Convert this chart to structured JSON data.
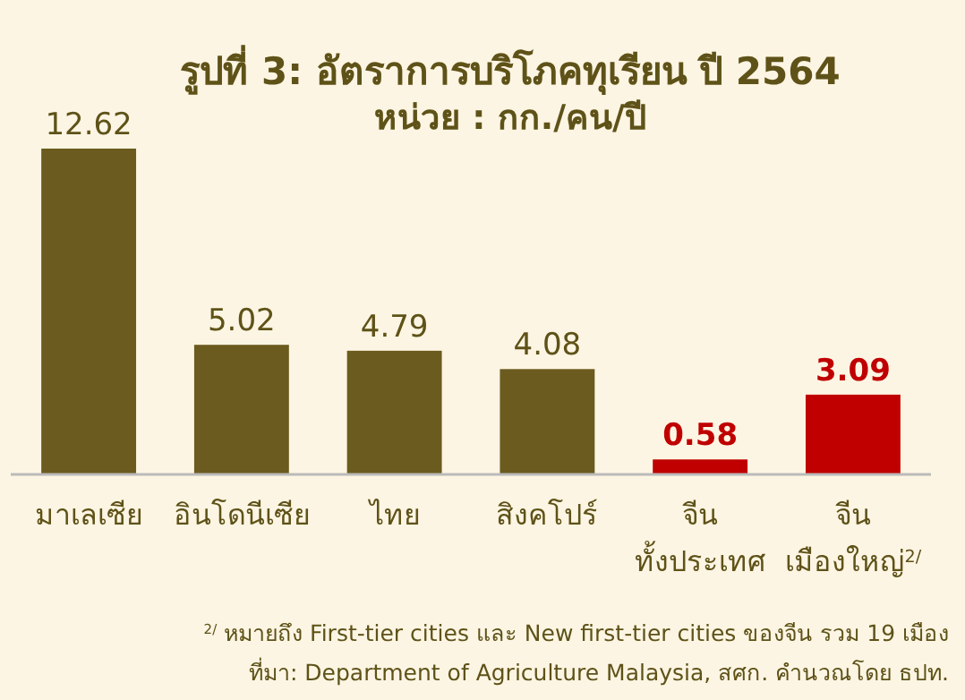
{
  "chart_data": {
    "type": "bar",
    "title": "รูปที่ 3: อัตราการบริโภคทุเรียน ปี 2564",
    "subtitle": "หน่วย : กก./คน/ปี",
    "categories": [
      "มาเลเซีย",
      "อินโดนีเซีย",
      "ไทย",
      "สิงคโปร์",
      "จีน\nทั้งประเทศ",
      "จีน\nเมืองใหญ่$^{2/}$"
    ],
    "values": [
      12.62,
      5.02,
      4.79,
      4.08,
      0.58,
      3.09
    ],
    "colors": [
      "#6b5b1e",
      "#6b5b1e",
      "#6b5b1e",
      "#6b5b1e",
      "#c00000",
      "#c00000"
    ],
    "relative": false,
    "data_labels": true,
    "annotations": [
      "$^{2/}$ หมายถึง First-tier cities และ New first-tier cities ของจีน รวม 19 เมือง",
      "ที่มา: Department of Agriculture Malaysia, สศก. คำนวณโดย ธปท."
    ]
  }
}
